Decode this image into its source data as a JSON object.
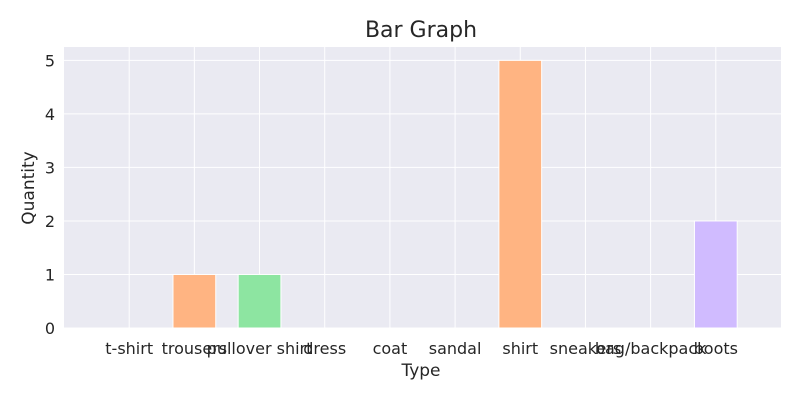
{
  "chart_data": {
    "type": "bar",
    "title": "Bar Graph",
    "xlabel": "Type",
    "ylabel": "Quantity",
    "categories": [
      "t-shirt",
      "trousers",
      "pullover shirt",
      "dress",
      "coat",
      "sandal",
      "shirt",
      "sneakers",
      "bag/backpack",
      "boots"
    ],
    "values": [
      0,
      1,
      1,
      0,
      0,
      0,
      5,
      0,
      0,
      2
    ],
    "bar_colors": [
      "#a1c9f4",
      "#ffb482",
      "#8de5a1",
      "#ff9f9b",
      "#d0bbff",
      "#debb9b",
      "#ffb482",
      "#8de5a1",
      "#ff9f9b",
      "#d0bbff"
    ],
    "ylim": [
      0,
      5.25
    ],
    "yticks": [
      0,
      1,
      2,
      3,
      4,
      5
    ],
    "grid": true,
    "background_color": "#eaeaf2"
  }
}
